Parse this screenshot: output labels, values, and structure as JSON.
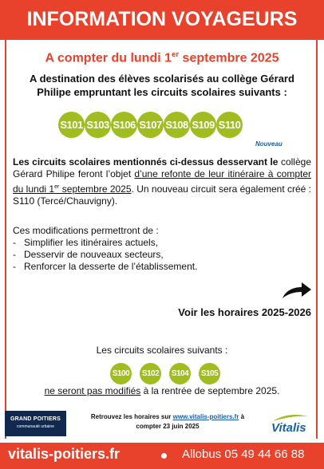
{
  "header": {
    "title": "INFORMATION VOYAGEURS"
  },
  "date_title": {
    "prefix": "A compter du lundi 1",
    "sup": "er",
    "suffix": " septembre 2025"
  },
  "intro": "A destination des élèves scolarisés au collège Gérard Philipe empruntant les circuits scolaires suivants :",
  "circuits_modifies": [
    "S101",
    "S103",
    "S106",
    "S107",
    "S108",
    "S109",
    "S110"
  ],
  "nouveau_label": "Nouveau",
  "body": {
    "bold_part": "Les circuits scolaires mentionnés ci-dessus desservant le",
    "part2": " collège Gérard Philipe feront l’objet ",
    "underlined_part": "d’une refonte de leur itinéraire à compter du lundi 1",
    "underlined_sup": "er",
    "underlined_end": " septembre 2025",
    "part3": ". Un nouveau circuit sera également créé : S110 (Tercé/Chauvigny)."
  },
  "modifications": {
    "intro": "Ces modifications permettront de :",
    "items": [
      "Simplifier les itinéraires actuels,",
      "Desservir de nouveaux secteurs,",
      "Renforcer la desserte de l’établissement."
    ]
  },
  "voir_horaires": "Voir les horaires 2025-2026",
  "suivants_label": "Les circuits scolaires suivants :",
  "circuits_non_modifies": [
    "S100",
    "S102",
    "S104",
    "S105"
  ],
  "non_modifies": {
    "underlined": "ne seront pas modifiés",
    "rest": " à la rentrée de septembre 2025."
  },
  "grand_poitiers": {
    "name": "GRAND POITIERS",
    "sub": "communauté urbaine"
  },
  "retrouvez": {
    "prefix": "Retrouvez les horaires sur ",
    "link": "www.vitalis-poitiers.fr",
    "suffix": " à",
    "line2": "compter 23 juin 2025"
  },
  "vitalis_logo": "Vitalis",
  "footer": {
    "site": "vitalis-poitiers.fr",
    "phone": "Allobus 05 49 44 66 88"
  },
  "colors": {
    "brand_red": "#e8412c",
    "circuit_green": "#9fbd1e",
    "link_blue": "#1a5fa8",
    "navy": "#12294f"
  }
}
